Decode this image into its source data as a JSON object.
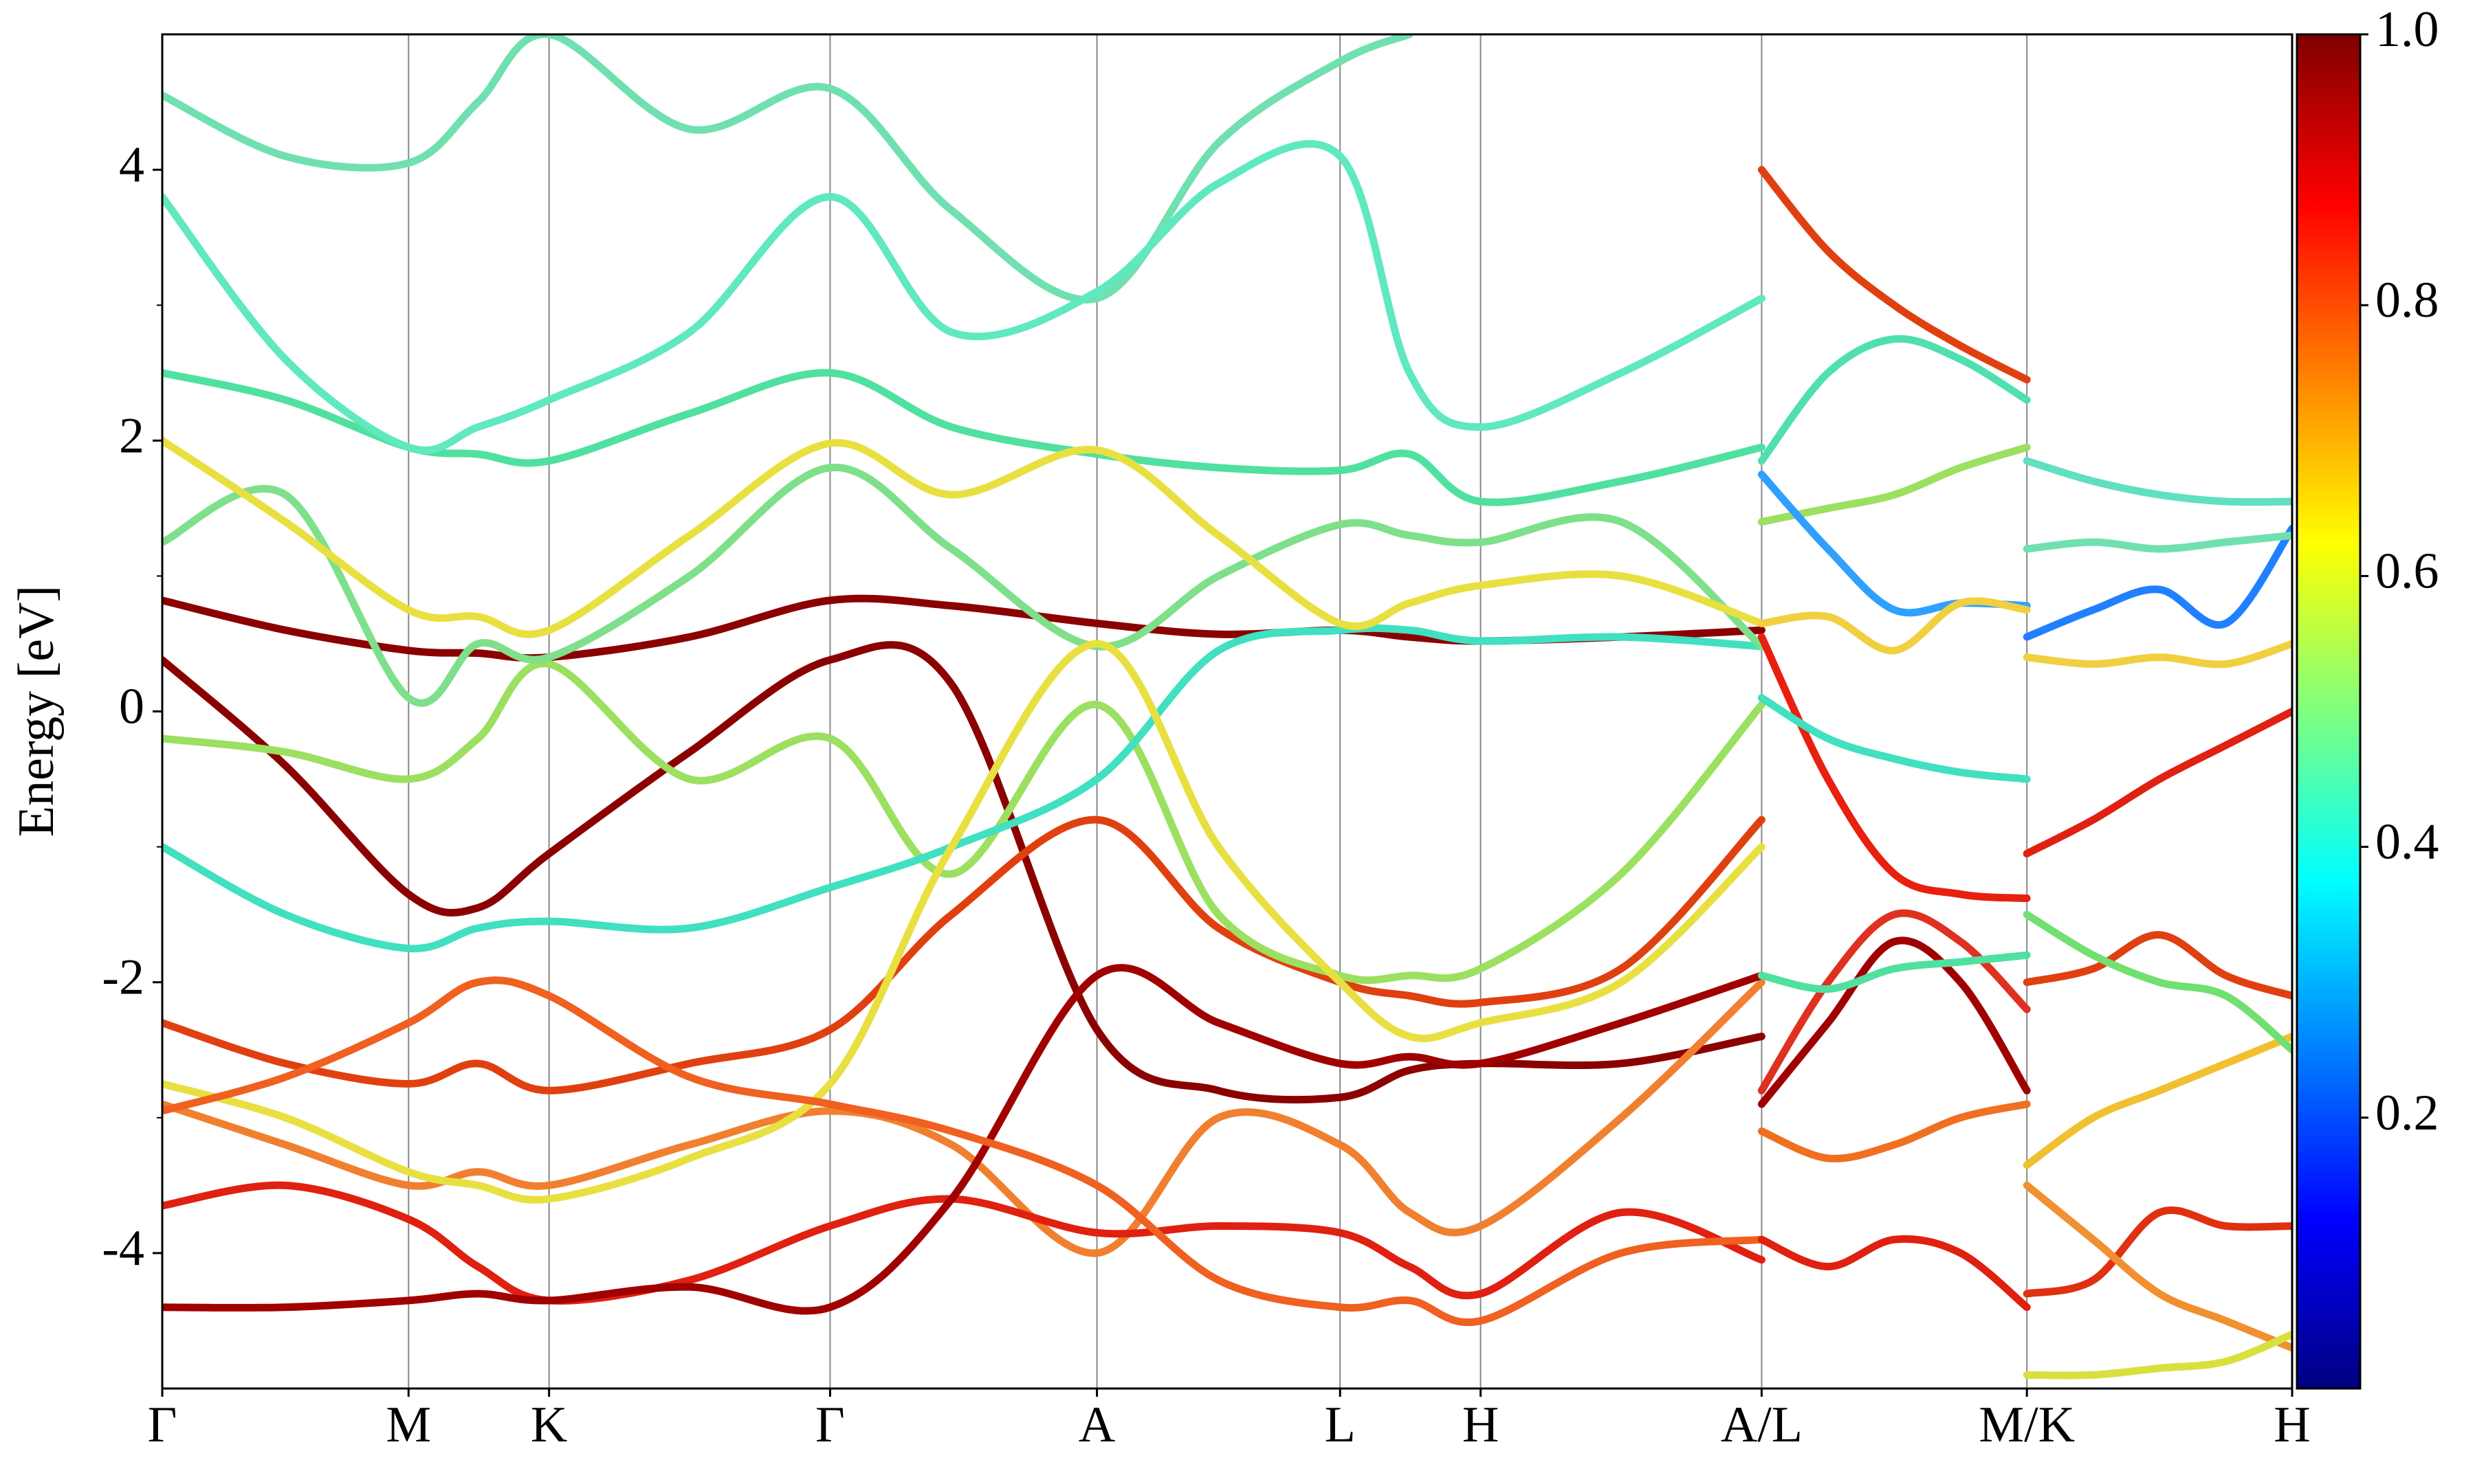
{
  "chart_data": {
    "type": "band-structure",
    "y_label": "Energy [eV]",
    "xlim": [
      0,
      1.349
    ],
    "xticks": [
      {
        "value": 0,
        "label": "Γ"
      },
      {
        "value": 0.156,
        "label": "M"
      },
      {
        "value": 0.245,
        "label": "K"
      },
      {
        "value": 0.423,
        "label": "Γ"
      },
      {
        "value": 0.592,
        "label": "A"
      },
      {
        "value": 0.746,
        "label": "L"
      },
      {
        "value": 0.835,
        "label": "H"
      },
      {
        "value": 1.013,
        "label": "A/L"
      },
      {
        "value": 1.181,
        "label": "M/K"
      },
      {
        "value": 1.349,
        "label": "H"
      }
    ],
    "ylim": [
      -5,
      5
    ],
    "yticks": [
      -4,
      -2,
      0,
      2,
      4
    ],
    "yminorticks": [
      -3,
      -1,
      1,
      3
    ],
    "colorbar": {
      "lim": [
        0,
        1
      ],
      "ticks": [
        0.2,
        0.4,
        0.6,
        0.8,
        {
          "value": 1,
          "label": "1.0"
        }
      ],
      "colormap": "jet"
    },
    "segments": [
      {
        "x": [
          0,
          0.078,
          0.156,
          0.2,
          0.245,
          0.334,
          0.423,
          0.5,
          0.592,
          0.669,
          0.746,
          0.79,
          0.835,
          0.924,
          1.013
        ],
        "series": [
          {
            "color": "#8b0000",
            "values": [
              0.82,
              0.6,
              0.45,
              0.43,
              0.4,
              0.55,
              0.82,
              0.78,
              0.65,
              0.57,
              0.6,
              0.55,
              0.52,
              0.55,
              0.6
            ]
          },
          {
            "color": "#8b0000",
            "values": [
              0.38,
              -0.4,
              -1.35,
              -1.45,
              -1.05,
              -0.3,
              0.38,
              0.2,
              -2.35,
              -2.8,
              -2.85,
              -2.65,
              -2.6,
              -2.6,
              -2.4
            ]
          },
          {
            "color": "#e04010",
            "values": [
              -2.3,
              -2.6,
              -2.75,
              -2.6,
              -2.8,
              -2.6,
              -2.35,
              -1.5,
              -0.8,
              -1.6,
              -2.0,
              -2.1,
              -2.15,
              -1.9,
              -0.8
            ]
          },
          {
            "color": "#9be060",
            "values": [
              -0.2,
              -0.3,
              -0.5,
              -0.2,
              0.35,
              -0.5,
              -0.2,
              -1.2,
              0.05,
              -1.5,
              -1.95,
              -1.95,
              -1.9,
              -1.2,
              0.05
            ]
          },
          {
            "color": "#40e0c0",
            "values": [
              -1.0,
              -1.5,
              -1.75,
              -1.6,
              -1.55,
              -1.6,
              -1.3,
              -1.0,
              -0.5,
              0.45,
              0.6,
              0.6,
              0.52,
              0.55,
              0.48
            ]
          },
          {
            "color": "#50e0a0",
            "values": [
              2.5,
              2.3,
              1.95,
              1.9,
              1.85,
              2.2,
              2.5,
              2.1,
              1.9,
              1.8,
              1.78,
              1.9,
              1.55,
              1.7,
              1.95
            ]
          },
          {
            "color": "#70e0b0",
            "values": [
              4.55,
              4.1,
              4.05,
              4.5,
              5.0,
              4.3,
              4.6,
              3.7,
              3.05,
              4.2,
              4.8,
              5.0,
              null,
              null,
              null
            ]
          },
          {
            "color": "#60e8c0",
            "values": [
              3.8,
              2.6,
              1.95,
              2.1,
              2.3,
              2.8,
              3.8,
              2.8,
              3.1,
              3.9,
              4.1,
              2.5,
              2.1,
              2.5,
              3.05
            ]
          },
          {
            "color": "#7ee08a",
            "values": [
              1.25,
              1.6,
              0.1,
              0.5,
              0.4,
              1.0,
              1.8,
              1.2,
              0.48,
              1.0,
              1.38,
              1.3,
              1.25,
              1.4,
              0.48
            ]
          },
          {
            "color": "#e8e040",
            "values": [
              2.0,
              1.4,
              0.75,
              0.7,
              0.6,
              1.3,
              1.98,
              1.6,
              1.93,
              1.3,
              0.65,
              0.8,
              0.93,
              1.0,
              0.65
            ]
          },
          {
            "color": "#f08030",
            "values": [
              -2.9,
              -3.2,
              -3.5,
              -3.4,
              -3.5,
              -3.2,
              -2.95,
              -3.2,
              -4.0,
              -3.0,
              -3.2,
              -3.7,
              -3.8,
              -3.0,
              -2.0
            ]
          },
          {
            "color": "#e02010",
            "values": [
              -3.65,
              -3.5,
              -3.75,
              -4.1,
              -4.35,
              -4.2,
              -3.8,
              -3.6,
              -3.85,
              -3.8,
              -3.85,
              -4.1,
              -4.3,
              -3.7,
              -4.05
            ]
          },
          {
            "color": "#a00000",
            "values": [
              -4.4,
              -4.4,
              -4.35,
              -4.3,
              -4.35,
              -4.25,
              -4.4,
              -3.6,
              -1.95,
              -2.3,
              -2.6,
              -2.55,
              -2.6,
              -2.3,
              -1.95
            ]
          },
          {
            "color": "#e8e040",
            "values": [
              -2.75,
              -3.0,
              -3.4,
              -3.5,
              -3.6,
              -3.3,
              -2.75,
              -1.0,
              0.5,
              -1.0,
              -2.0,
              -2.4,
              -2.3,
              -2.0,
              -1.0
            ]
          },
          {
            "color": "#f06020",
            "values": [
              -2.95,
              -2.7,
              -2.3,
              -2.0,
              -2.1,
              -2.7,
              -2.9,
              -3.1,
              -3.5,
              -4.2,
              -4.4,
              -4.35,
              -4.5,
              -4.0,
              -3.9
            ]
          }
        ]
      },
      {
        "x": [
          1.013,
          1.055,
          1.097,
          1.139,
          1.181
        ],
        "series": [
          {
            "color": "#e82010",
            "values": [
              0.55,
              -0.5,
              -1.2,
              -1.35,
              -1.38
            ]
          },
          {
            "color": "#50e0b0",
            "values": [
              1.85,
              2.5,
              2.75,
              2.6,
              2.3
            ]
          },
          {
            "color": "#e04010",
            "values": [
              4.0,
              3.4,
              3.0,
              2.7,
              2.45
            ]
          },
          {
            "color": "#9be060",
            "values": [
              1.4,
              1.5,
              1.6,
              1.8,
              1.95
            ]
          },
          {
            "color": "#30a0ff",
            "values": [
              1.75,
              1.2,
              0.75,
              0.8,
              0.78
            ]
          },
          {
            "color": "#40e0c0",
            "values": [
              0.1,
              -0.2,
              -0.35,
              -0.45,
              -0.5
            ]
          },
          {
            "color": "#e03020",
            "values": [
              -2.8,
              -2.0,
              -1.5,
              -1.7,
              -2.2
            ]
          },
          {
            "color": "#a00000",
            "values": [
              -2.9,
              -2.3,
              -1.7,
              -2.0,
              -2.8
            ]
          },
          {
            "color": "#f07020",
            "values": [
              -3.1,
              -3.3,
              -3.2,
              -3.0,
              -2.9
            ]
          },
          {
            "color": "#e02010",
            "values": [
              -3.9,
              -4.1,
              -3.9,
              -4.0,
              -4.4
            ]
          },
          {
            "color": "#50e0a0",
            "values": [
              -1.95,
              -2.05,
              -1.9,
              -1.85,
              -1.8
            ]
          },
          {
            "color": "#f0d040",
            "values": [
              0.65,
              0.7,
              0.45,
              0.8,
              0.75
            ]
          }
        ]
      },
      {
        "x": [
          1.181,
          1.223,
          1.265,
          1.307,
          1.349
        ],
        "series": [
          {
            "color": "#e02010",
            "values": [
              -1.05,
              -0.8,
              -0.5,
              -0.25,
              0.0
            ]
          },
          {
            "color": "#2080ff",
            "values": [
              0.55,
              0.75,
              0.9,
              0.65,
              1.35
            ]
          },
          {
            "color": "#f0d040",
            "values": [
              0.4,
              0.35,
              0.4,
              0.35,
              0.5
            ]
          },
          {
            "color": "#70e0b0",
            "values": [
              1.2,
              1.25,
              1.2,
              1.25,
              1.3
            ]
          },
          {
            "color": "#60e0c0",
            "values": [
              1.85,
              1.7,
              1.6,
              1.55,
              1.55
            ]
          },
          {
            "color": "#e04010",
            "values": [
              -2.0,
              -1.9,
              -1.65,
              -1.95,
              -2.1
            ]
          },
          {
            "color": "#f0c030",
            "values": [
              -3.35,
              -3.0,
              -2.8,
              -2.6,
              -2.4
            ]
          },
          {
            "color": "#e03010",
            "values": [
              -4.3,
              -4.2,
              -3.7,
              -3.8,
              -3.8
            ]
          },
          {
            "color": "#f09030",
            "values": [
              -3.5,
              -3.9,
              -4.3,
              -4.5,
              -4.7
            ]
          },
          {
            "color": "#d8e040",
            "values": [
              -4.9,
              -4.9,
              -4.85,
              -4.8,
              -4.6
            ]
          },
          {
            "color": "#70e070",
            "values": [
              -1.5,
              -1.8,
              -2.0,
              -2.1,
              -2.5
            ]
          }
        ]
      }
    ]
  }
}
